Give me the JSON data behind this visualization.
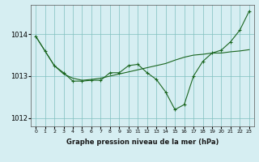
{
  "x": [
    0,
    1,
    2,
    3,
    4,
    5,
    6,
    7,
    8,
    9,
    10,
    11,
    12,
    13,
    14,
    15,
    16,
    17,
    18,
    19,
    20,
    21,
    22,
    23
  ],
  "line1": [
    1013.95,
    1013.6,
    1013.25,
    1013.05,
    1012.95,
    1012.9,
    1012.92,
    1012.95,
    1013.0,
    1013.05,
    1013.1,
    1013.15,
    1013.2,
    1013.25,
    1013.3,
    1013.38,
    1013.45,
    1013.5,
    1013.52,
    1013.55,
    1013.55,
    1013.58,
    1013.6,
    1013.63
  ],
  "line2": [
    1013.95,
    1013.6,
    1013.25,
    1013.08,
    1012.88,
    1012.88,
    1012.9,
    1012.9,
    1013.08,
    1013.08,
    1013.25,
    1013.28,
    1013.08,
    1012.92,
    1012.62,
    1012.2,
    1012.32,
    1013.0,
    1013.35,
    1013.55,
    1013.62,
    1013.82,
    1014.1,
    1014.55
  ],
  "bg_color": "#d6eef2",
  "line_color": "#1a6620",
  "grid_color": "#7fbfbf",
  "xlabel": "Graphe pression niveau de la mer (hPa)",
  "ylim": [
    1011.8,
    1014.7
  ],
  "xlim": [
    -0.5,
    23.5
  ],
  "yticks": [
    1012,
    1013,
    1014
  ],
  "xticks": [
    0,
    1,
    2,
    3,
    4,
    5,
    6,
    7,
    8,
    9,
    10,
    11,
    12,
    13,
    14,
    15,
    16,
    17,
    18,
    19,
    20,
    21,
    22,
    23
  ]
}
